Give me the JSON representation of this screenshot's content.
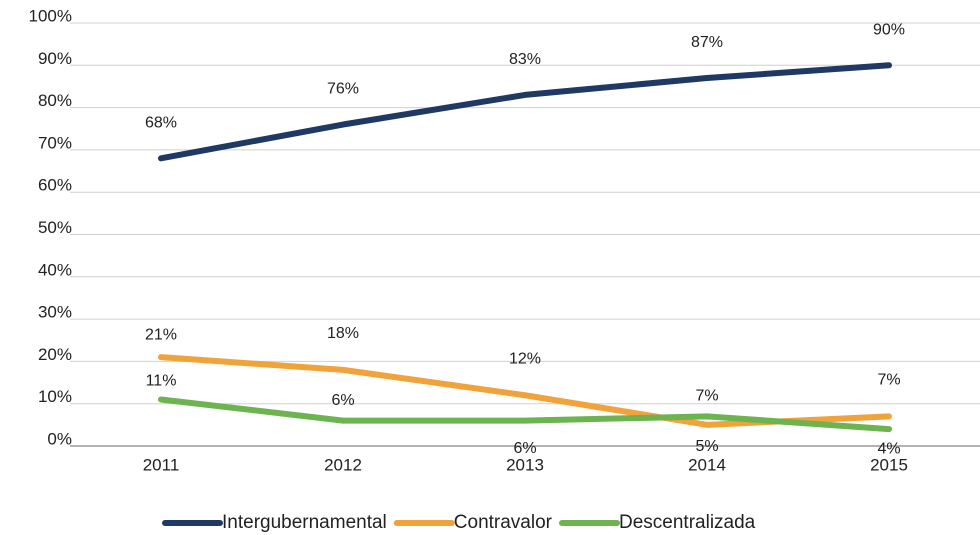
{
  "chart_data": {
    "type": "line",
    "categories": [
      "2011",
      "2012",
      "2013",
      "2014",
      "2015"
    ],
    "series": [
      {
        "name": "Intergubernamental",
        "color": "#1f3864",
        "values": [
          68,
          76,
          83,
          87,
          90
        ],
        "value_labels": [
          "68%",
          "76%",
          "83%",
          "87%",
          "90%"
        ]
      },
      {
        "name": "Contravalor",
        "color": "#f0a23b",
        "values": [
          21,
          18,
          12,
          5,
          7
        ],
        "value_labels": [
          "21%",
          "18%",
          "12%",
          "5%",
          "7%"
        ]
      },
      {
        "name": "Descentralizada",
        "color": "#6db34f",
        "values": [
          11,
          6,
          6,
          7,
          4
        ],
        "value_labels": [
          "11%",
          "6%",
          "6%",
          "7%",
          "4%"
        ]
      }
    ],
    "ylim": [
      0,
      100
    ],
    "yticks": [
      {
        "value": 0,
        "label": "0%"
      },
      {
        "value": 10,
        "label": "10%"
      },
      {
        "value": 20,
        "label": "20%"
      },
      {
        "value": 30,
        "label": "30%"
      },
      {
        "value": 40,
        "label": "40%"
      },
      {
        "value": 50,
        "label": "50%"
      },
      {
        "value": 60,
        "label": "60%"
      },
      {
        "value": 70,
        "label": "70%"
      },
      {
        "value": 80,
        "label": "80%"
      },
      {
        "value": 90,
        "label": "90%"
      },
      {
        "value": 100,
        "label": "100%"
      }
    ],
    "grid": true,
    "legend": "bottom"
  }
}
